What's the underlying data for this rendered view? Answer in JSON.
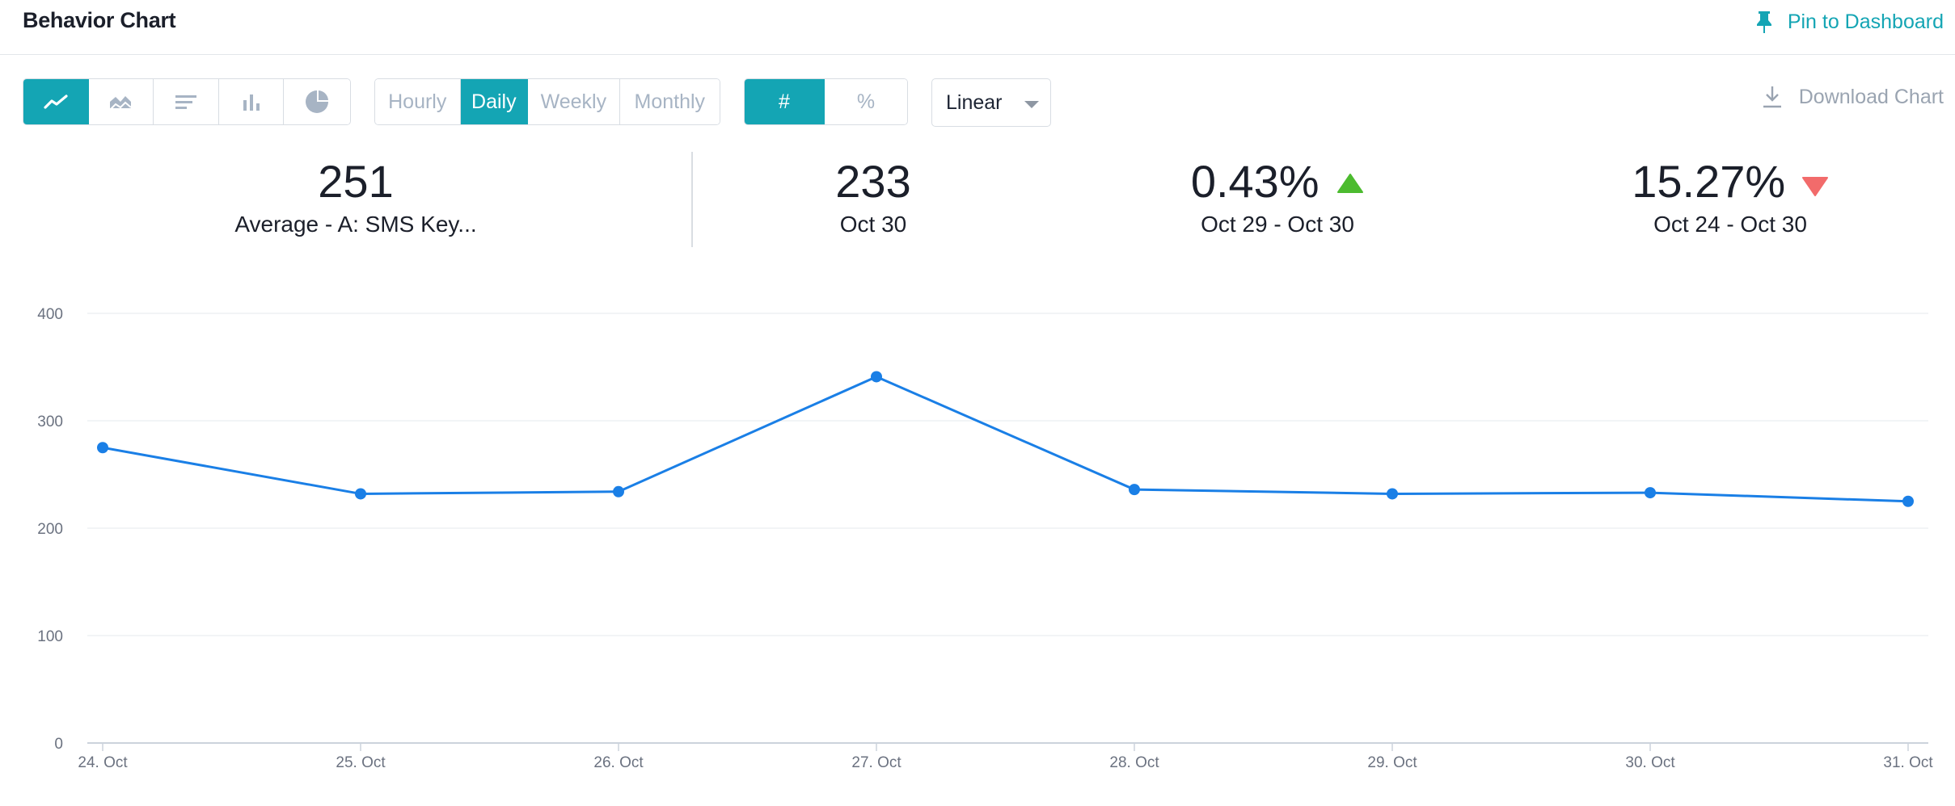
{
  "header": {
    "title": "Behavior Chart",
    "pin_label": "Pin to Dashboard"
  },
  "toolbar": {
    "chart_types": [
      {
        "icon": "line-chart-icon",
        "active": true
      },
      {
        "icon": "area-chart-icon",
        "active": false
      },
      {
        "icon": "horizontal-bar-icon",
        "active": false
      },
      {
        "icon": "column-chart-icon",
        "active": false
      },
      {
        "icon": "pie-chart-icon",
        "active": false
      }
    ],
    "intervals": [
      {
        "label": "Hourly",
        "active": false
      },
      {
        "label": "Daily",
        "active": true
      },
      {
        "label": "Weekly",
        "active": false
      },
      {
        "label": "Monthly",
        "active": false
      }
    ],
    "units": [
      {
        "label": "#",
        "active": true
      },
      {
        "label": "%",
        "active": false
      }
    ],
    "scale_value": "Linear",
    "download_label": "Download Chart"
  },
  "stats": [
    {
      "value": "251",
      "label": "Average - A: SMS Key..."
    },
    {
      "value": "233",
      "label": "Oct 30"
    },
    {
      "value": "0.43%",
      "label": "Oct 29 - Oct 30",
      "trend": "up"
    },
    {
      "value": "15.27%",
      "label": "Oct 24 - Oct 30",
      "trend": "down"
    }
  ],
  "colors": {
    "accent": "#14a5b4",
    "series": "#1a7fe6",
    "up": "#4cbb2f",
    "down": "#f26b6b"
  },
  "chart_data": {
    "type": "line",
    "categories": [
      "24. Oct",
      "25. Oct",
      "26. Oct",
      "27. Oct",
      "28. Oct",
      "29. Oct",
      "30. Oct",
      "31. Oct"
    ],
    "series": [
      {
        "values": [
          275,
          232,
          234,
          341,
          236,
          232,
          233,
          225
        ]
      }
    ],
    "yticks": [
      "0",
      "100",
      "200",
      "300",
      "400"
    ],
    "ylim": [
      0,
      400
    ],
    "grid": true,
    "legend": "none"
  }
}
